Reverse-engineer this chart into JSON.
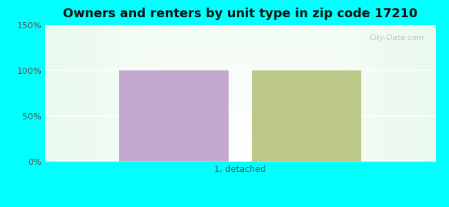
{
  "title": "Owners and renters by unit type in zip code 17210",
  "categories": [
    "1, detached"
  ],
  "owner_values": [
    100
  ],
  "renter_values": [
    100
  ],
  "owner_color": "#c4a8d0",
  "renter_color": "#bdc98a",
  "ylim": [
    0,
    150
  ],
  "yticks": [
    0,
    50,
    100,
    150
  ],
  "ytick_labels": [
    "0%",
    "50%",
    "100%",
    "150%"
  ],
  "title_fontsize": 13,
  "background_color": "#00ffff",
  "watermark": "City-Data.com",
  "bar_width": 0.28,
  "bar_gap": 0.06,
  "grid_color": "#e0e0e0",
  "tick_color": "#555555",
  "label_color": "#555555"
}
